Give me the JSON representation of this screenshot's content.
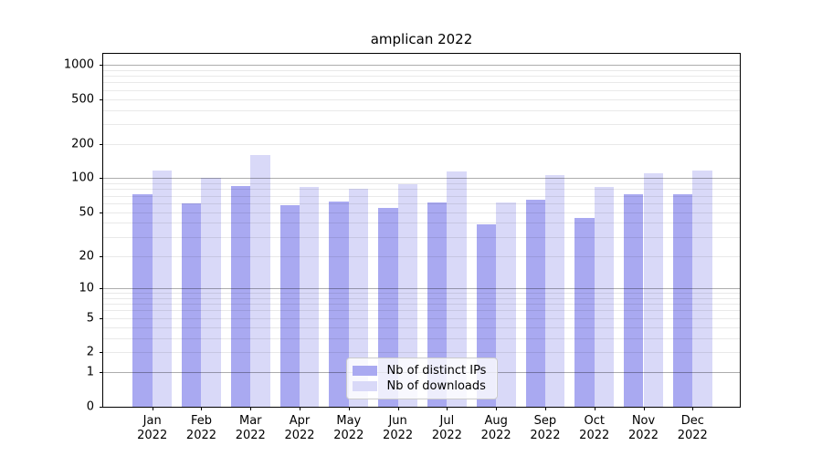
{
  "chart_data": {
    "type": "bar",
    "title": "amplican 2022",
    "categories": [
      "Jan",
      "Feb",
      "Mar",
      "Apr",
      "May",
      "Jun",
      "Jul",
      "Aug",
      "Sep",
      "Oct",
      "Nov",
      "Dec"
    ],
    "category_year": "2022",
    "series": [
      {
        "name": "Nb of distinct IPs",
        "color": "#a9a9f1",
        "values": [
          72,
          60,
          86,
          58,
          62,
          54,
          61,
          39,
          65,
          44,
          72,
          72
        ]
      },
      {
        "name": "Nb of downloads",
        "color": "#d9d9f8",
        "values": [
          118,
          101,
          160,
          83,
          80,
          89,
          114,
          61,
          107,
          83,
          110,
          116
        ]
      }
    ],
    "yticks": [
      0,
      1,
      2,
      5,
      10,
      20,
      50,
      100,
      200,
      500,
      1000
    ],
    "xlabel": "",
    "ylabel": "",
    "yscale": "log10(1+x)",
    "ylim": [
      0,
      1247
    ],
    "grid": "horizontal, minor and major lines, drawn over bars",
    "legend_position": "lower center",
    "colors": {
      "major_grid": "#b3b3b3",
      "minor_grid": "#e8e8e8",
      "spine": "#000000",
      "background": "#ffffff",
      "text": "#000000"
    }
  }
}
